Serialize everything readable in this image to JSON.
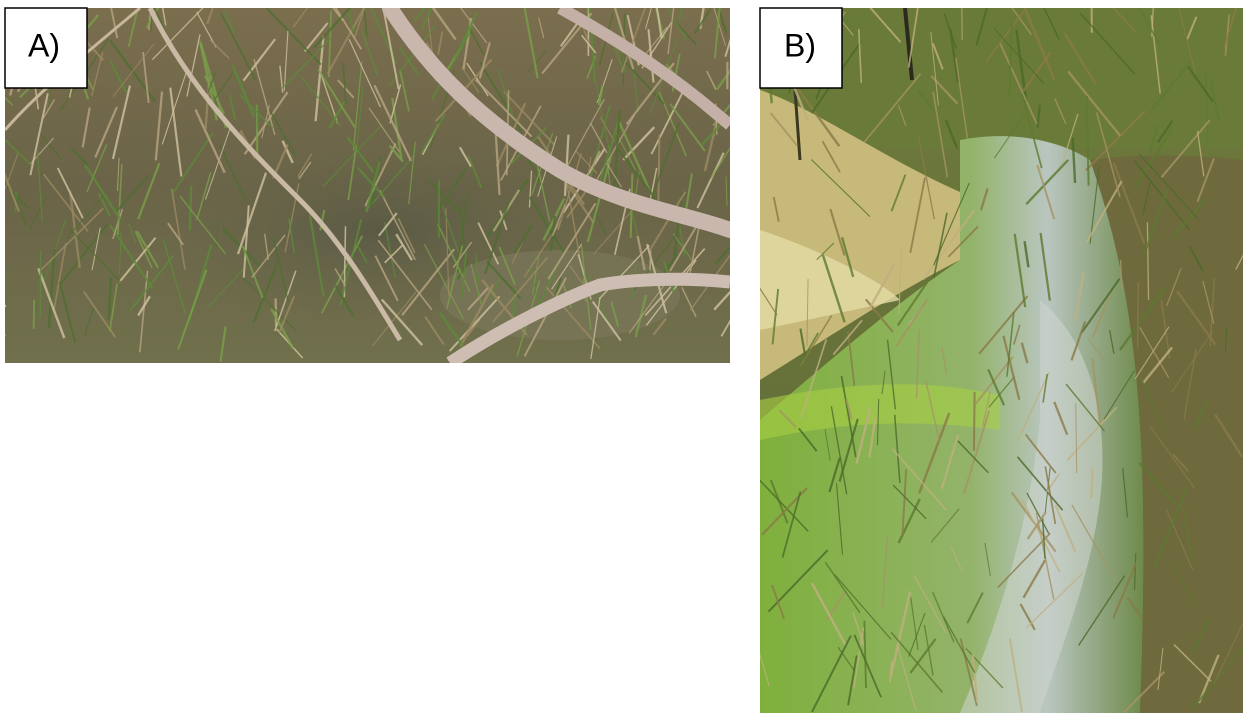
{
  "panels": [
    {
      "label": "A)"
    },
    {
      "label": "B)"
    }
  ]
}
